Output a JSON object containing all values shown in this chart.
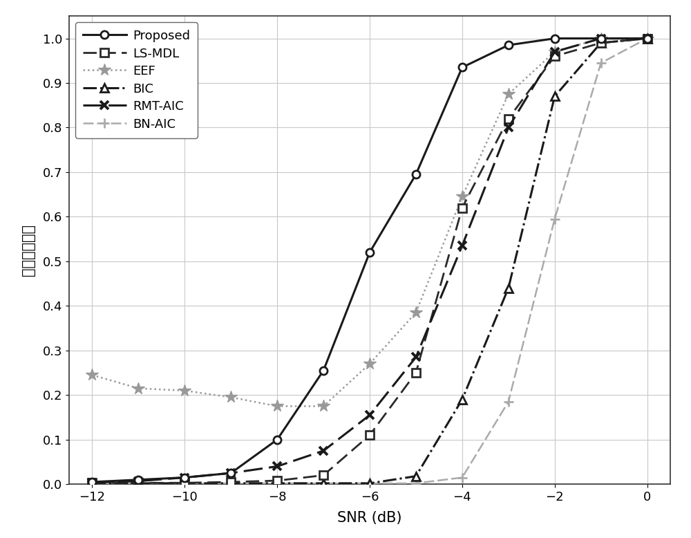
{
  "snr": [
    -12,
    -11,
    -10,
    -9,
    -8,
    -7,
    -6,
    -5,
    -4,
    -3,
    -2,
    -1,
    0
  ],
  "proposed": [
    0.005,
    0.01,
    0.015,
    0.025,
    0.1,
    0.255,
    0.52,
    0.695,
    0.935,
    0.985,
    1.0,
    1.0,
    1.0
  ],
  "ls_mdl": [
    0.003,
    0.003,
    0.003,
    0.005,
    0.008,
    0.02,
    0.11,
    0.25,
    0.62,
    0.82,
    0.96,
    0.99,
    1.0
  ],
  "eef": [
    0.245,
    0.215,
    0.21,
    0.195,
    0.175,
    0.175,
    0.27,
    0.385,
    0.645,
    0.875,
    0.97,
    1.0,
    1.0
  ],
  "bic": [
    0.002,
    0.002,
    0.002,
    0.002,
    0.002,
    0.002,
    0.002,
    0.018,
    0.19,
    0.44,
    0.87,
    0.99,
    1.0
  ],
  "rmt_aic": [
    0.004,
    0.007,
    0.015,
    0.025,
    0.04,
    0.075,
    0.155,
    0.285,
    0.535,
    0.8,
    0.97,
    1.0,
    1.0
  ],
  "bn_aic": [
    0.002,
    0.002,
    0.002,
    0.002,
    0.002,
    0.002,
    0.002,
    0.002,
    0.015,
    0.185,
    0.595,
    0.945,
    1.0
  ],
  "xlabel": "SNR (dB)",
  "ylabel": "正确检测概率",
  "xlim": [
    -12.5,
    0.5
  ],
  "ylim": [
    0,
    1.05
  ],
  "xticks": [
    -12,
    -10,
    -8,
    -6,
    -4,
    -2,
    0
  ],
  "yticks": [
    0,
    0.1,
    0.2,
    0.3,
    0.4,
    0.5,
    0.6,
    0.7,
    0.8,
    0.9,
    1
  ],
  "dark_color": "#1a1a1a",
  "dark2_color": "#2a2a2a",
  "gray_color": "#999999",
  "gray2_color": "#aaaaaa",
  "legend_labels": [
    "Proposed",
    "LS-MDL",
    "EEF",
    "BIC",
    "RMT-AIC",
    "BN-AIC"
  ],
  "fontsize_label": 15,
  "fontsize_tick": 13,
  "fontsize_legend": 13
}
